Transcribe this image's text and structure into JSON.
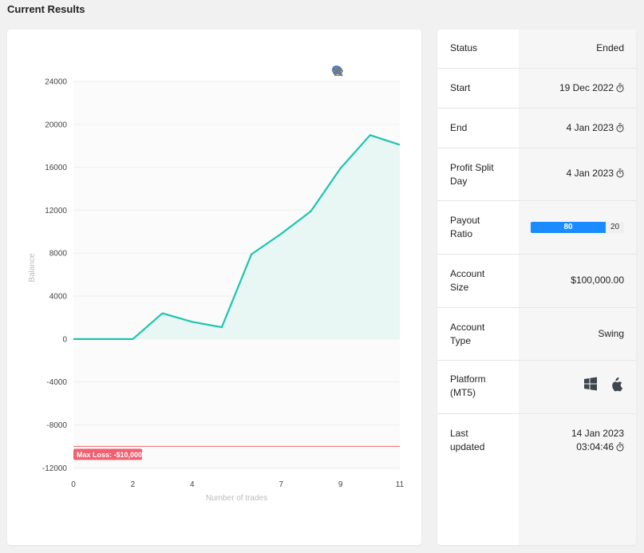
{
  "page": {
    "title": "Current Results"
  },
  "chart_data": {
    "type": "area",
    "xlabel": "Number of trades",
    "ylabel": "Balance",
    "x_ticks": [
      0,
      2,
      4,
      7,
      9,
      11
    ],
    "y_ticks": [
      24000,
      20000,
      16000,
      12000,
      8000,
      4000,
      0,
      -4000,
      -8000,
      -12000
    ],
    "xlim": [
      0,
      11
    ],
    "ylim": [
      -12200,
      24000
    ],
    "series": [
      {
        "values": [
          {
            "x": 0,
            "y": 0
          },
          {
            "x": 1,
            "y": 0
          },
          {
            "x": 2,
            "y": 0
          },
          {
            "x": 3,
            "y": 2400
          },
          {
            "x": 4,
            "y": 1600
          },
          {
            "x": 5,
            "y": 1100
          },
          {
            "x": 6,
            "y": 7900
          },
          {
            "x": 7,
            "y": 9800
          },
          {
            "x": 8,
            "y": 11900
          },
          {
            "x": 9,
            "y": 15900
          },
          {
            "x": 10,
            "y": 19000
          },
          {
            "x": 11,
            "y": 18100
          }
        ]
      }
    ],
    "threshold": {
      "value": -10000,
      "label": "Max Loss: -$10,000",
      "color": "#f06070"
    },
    "line_color": "#1cc5b0",
    "fill_color": "#e9f7f4",
    "grid": true
  },
  "toolbar": {
    "zoom_in": "zoom-in-icon",
    "zoom_out": "zoom-out-icon",
    "selection_zoom": "magnifier-icon",
    "reset": "home-icon",
    "pan": "eye-off-icon"
  },
  "info": {
    "status": {
      "label": "Status",
      "value": "Ended"
    },
    "start": {
      "label": "Start",
      "value": "19 Dec 2022"
    },
    "end": {
      "label": "End",
      "value": "4 Jan 2023"
    },
    "profit_split_day": {
      "label_1": "Profit Split",
      "label_2": "Day",
      "value": "4 Jan 2023"
    },
    "payout_ratio": {
      "label_1": "Payout",
      "label_2": "Ratio",
      "trader": "80",
      "firm": "20",
      "trader_color": "#1a8cff"
    },
    "account_size": {
      "label_1": "Account",
      "label_2": "Size",
      "value": "$100,000.00"
    },
    "account_type": {
      "label_1": "Account",
      "label_2": "Type",
      "value": "Swing"
    },
    "platform": {
      "label_1": "Platform",
      "label_2": "(MT5)",
      "icons": [
        "windows-icon",
        "apple-icon"
      ]
    },
    "last_updated": {
      "label_1": "Last",
      "label_2": "updated",
      "date": "14 Jan 2023",
      "time": "03:04:46"
    }
  }
}
